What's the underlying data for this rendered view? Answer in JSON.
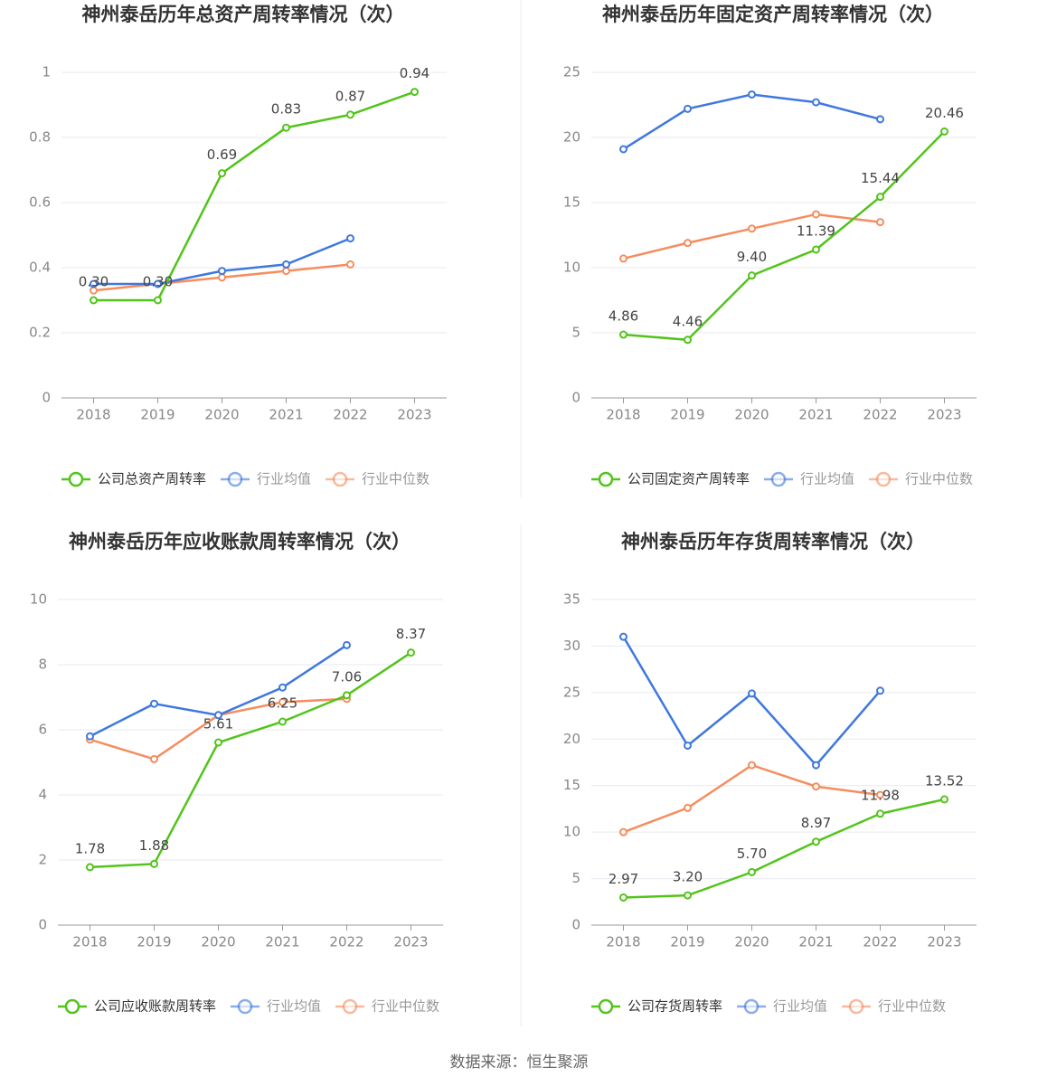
{
  "chart_data": [
    {
      "type": "line",
      "title": "神州泰岳历年总资产周转率情况（次）",
      "categories": [
        "2018",
        "2019",
        "2020",
        "2021",
        "2022",
        "2023"
      ],
      "series": [
        {
          "name": "公司总资产周转率",
          "color": "#52c41a",
          "values": [
            0.3,
            0.3,
            0.69,
            0.83,
            0.87,
            0.94
          ],
          "value_labels": [
            "0.30",
            "0.30",
            "0.69",
            "0.83",
            "0.87",
            "0.94"
          ]
        },
        {
          "name": "行业均值",
          "color": "#3f78dd",
          "values": [
            0.35,
            0.35,
            0.39,
            0.41,
            0.49,
            null
          ]
        },
        {
          "name": "行业中位数",
          "color": "#f58d5f",
          "values": [
            0.33,
            0.35,
            0.37,
            0.39,
            0.41,
            null
          ]
        }
      ],
      "ylim": [
        0,
        1
      ],
      "yticks": [
        0,
        0.2,
        0.4,
        0.6,
        0.8,
        1
      ],
      "grid": true,
      "legend": "bottom"
    },
    {
      "type": "line",
      "title": "神州泰岳历年固定资产周转率情况（次）",
      "categories": [
        "2018",
        "2019",
        "2020",
        "2021",
        "2022",
        "2023"
      ],
      "series": [
        {
          "name": "公司固定资产周转率",
          "color": "#52c41a",
          "values": [
            4.86,
            4.46,
            9.4,
            11.39,
            15.44,
            20.46
          ],
          "value_labels": [
            "4.86",
            "4.46",
            "9.40",
            "11.39",
            "15.44",
            "20.46"
          ]
        },
        {
          "name": "行业均值",
          "color": "#3f78dd",
          "values": [
            19.1,
            22.2,
            23.3,
            22.7,
            21.4,
            null
          ]
        },
        {
          "name": "行业中位数",
          "color": "#f58d5f",
          "values": [
            10.7,
            11.9,
            13.0,
            14.1,
            13.5,
            null
          ]
        }
      ],
      "ylim": [
        0,
        25
      ],
      "yticks": [
        0,
        5,
        10,
        15,
        20,
        25
      ],
      "grid": true,
      "legend": "bottom"
    },
    {
      "type": "line",
      "title": "神州泰岳历年应收账款周转率情况（次）",
      "categories": [
        "2018",
        "2019",
        "2020",
        "2021",
        "2022",
        "2023"
      ],
      "series": [
        {
          "name": "公司应收账款周转率",
          "color": "#52c41a",
          "values": [
            1.78,
            1.88,
            5.61,
            6.25,
            7.06,
            8.37
          ],
          "value_labels": [
            "1.78",
            "1.88",
            "5.61",
            "6.25",
            "7.06",
            "8.37"
          ]
        },
        {
          "name": "行业均值",
          "color": "#3f78dd",
          "values": [
            5.8,
            6.8,
            6.45,
            7.3,
            8.6,
            null
          ]
        },
        {
          "name": "行业中位数",
          "color": "#f58d5f",
          "values": [
            5.7,
            5.1,
            6.45,
            6.85,
            6.95,
            null
          ]
        }
      ],
      "ylim": [
        0,
        10
      ],
      "yticks": [
        0,
        2,
        4,
        6,
        8,
        10
      ],
      "grid": true,
      "legend": "bottom"
    },
    {
      "type": "line",
      "title": "神州泰岳历年存货周转率情况（次）",
      "categories": [
        "2018",
        "2019",
        "2020",
        "2021",
        "2022",
        "2023"
      ],
      "series": [
        {
          "name": "公司存货周转率",
          "color": "#52c41a",
          "values": [
            2.97,
            3.2,
            5.7,
            8.97,
            11.98,
            13.52
          ],
          "value_labels": [
            "2.97",
            "3.20",
            "5.70",
            "8.97",
            "11.98",
            "13.52"
          ]
        },
        {
          "name": "行业均值",
          "color": "#3f78dd",
          "values": [
            31.0,
            19.3,
            24.9,
            17.2,
            25.2,
            null
          ]
        },
        {
          "name": "行业中位数",
          "color": "#f58d5f",
          "values": [
            10.0,
            12.6,
            17.2,
            14.9,
            14.0,
            null
          ]
        }
      ],
      "ylim": [
        0,
        35
      ],
      "yticks": [
        0,
        5,
        10,
        15,
        20,
        25,
        30,
        35
      ],
      "grid": true,
      "legend": "bottom"
    }
  ],
  "footer": "数据来源：恒生聚源"
}
